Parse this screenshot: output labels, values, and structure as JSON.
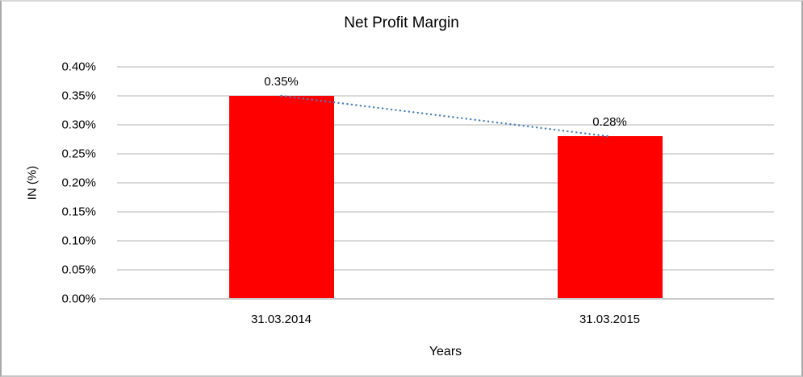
{
  "chart_data": {
    "type": "bar",
    "title": "Net Profit Margin",
    "xlabel": "Years",
    "ylabel": "IN (%)",
    "categories": [
      "31.03.2014",
      "31.03.2015"
    ],
    "values": [
      0.35,
      0.28
    ],
    "value_labels": [
      "0.35%",
      "0.28%"
    ],
    "ylim": [
      0,
      0.4
    ],
    "ytick_step": 0.05,
    "ytick_labels": [
      "0.00%",
      "0.05%",
      "0.10%",
      "0.15%",
      "0.20%",
      "0.25%",
      "0.30%",
      "0.35%",
      "0.40%"
    ],
    "bar_color": "#ff0000",
    "gridlines": "on",
    "legend": "none",
    "trendline": {
      "style": "dotted",
      "color": "#4a7ebb",
      "values": [
        0.35,
        0.28
      ]
    }
  }
}
